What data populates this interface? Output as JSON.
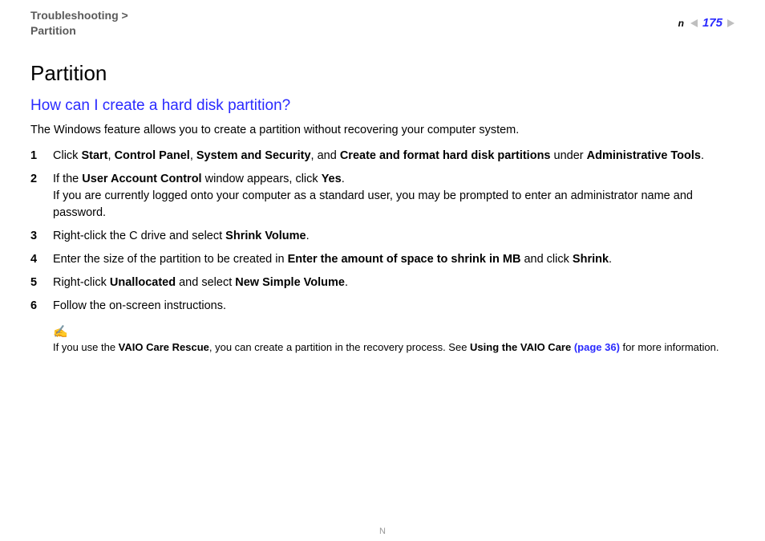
{
  "colors": {
    "link_blue": "#2a2aff",
    "text_black": "#000000",
    "header_gray": "#5a5a5a",
    "triangle_gray": "#bfbfbf",
    "background": "#ffffff"
  },
  "header": {
    "breadcrumb_line1": "Troubleshooting >",
    "breadcrumb_line2": "Partition",
    "page_number": "175",
    "n_label": "n"
  },
  "title": "Partition",
  "subtitle": "How can I create a hard disk partition?",
  "intro": "The Windows feature allows you to create a partition without recovering your computer system.",
  "steps": {
    "s1": {
      "t1": "Click ",
      "b1": "Start",
      "c1": ", ",
      "b2": "Control Panel",
      "c2": ", ",
      "b3": "System and Security",
      "c3": ", and ",
      "b4": "Create and format hard disk partitions",
      "c4": " under ",
      "b5": "Administrative Tools",
      "c5": "."
    },
    "s2": {
      "t1": "If the ",
      "b1": "User Account Control",
      "t2": " window appears, click ",
      "b2": "Yes",
      "t3": ".",
      "line2": "If you are currently logged onto your computer as a standard user, you may be prompted to enter an administrator name and password."
    },
    "s3": {
      "t1": "Right-click the C drive and select ",
      "b1": "Shrink Volume",
      "t2": "."
    },
    "s4": {
      "t1": "Enter the size of the partition to be created in ",
      "b1": "Enter the amount of space to shrink in MB",
      "t2": " and click ",
      "b2": "Shrink",
      "t3": "."
    },
    "s5": {
      "t1": "Right-click ",
      "b1": "Unallocated",
      "t2": " and select ",
      "b2": "New Simple Volume",
      "t3": "."
    },
    "s6": {
      "t1": "Follow the on-screen instructions."
    }
  },
  "note": {
    "icon": "✍",
    "t1": "If you use the ",
    "b1": "VAIO Care Rescue",
    "t2": ", you can create a partition in the recovery process. See ",
    "b2": "Using the VAIO Care ",
    "link": "(page 36)",
    "t3": " for more information."
  },
  "footer": {
    "n": "N"
  }
}
